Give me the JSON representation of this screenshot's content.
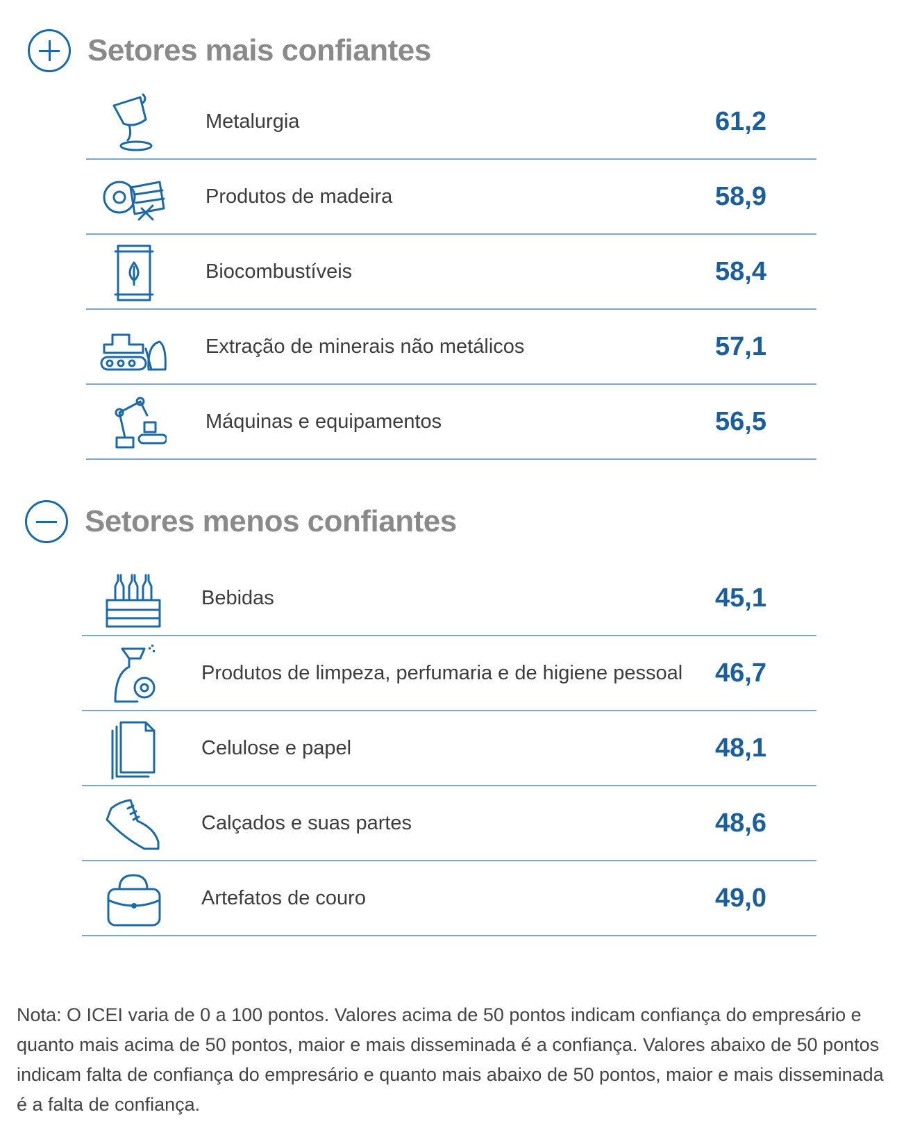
{
  "chart_data": {
    "type": "table",
    "sections": [
      {
        "title": "Setores mais confiantes",
        "sign": "plus",
        "rows": [
          {
            "label": "Metalurgia",
            "value": "61,2",
            "icon": "ladle-icon"
          },
          {
            "label": "Produtos de madeira",
            "value": "58,9",
            "icon": "saw-lumber-icon"
          },
          {
            "label": "Biocombustíveis",
            "value": "58,4",
            "icon": "biofuel-icon"
          },
          {
            "label": "Extração de minerais não metálicos",
            "value": "57,1",
            "icon": "bulldozer-icon"
          },
          {
            "label": "Máquinas e equipamentos",
            "value": "56,5",
            "icon": "robot-arm-icon"
          }
        ]
      },
      {
        "title": "Setores menos confiantes",
        "sign": "minus",
        "rows": [
          {
            "label": "Bebidas",
            "value": "45,1",
            "icon": "bottle-crate-icon"
          },
          {
            "label": "Produtos de limpeza, perfumaria e de higiene pessoal",
            "value": "46,7",
            "icon": "spray-bottle-icon"
          },
          {
            "label": "Celulose e papel",
            "value": "48,1",
            "icon": "paper-stack-icon"
          },
          {
            "label": "Calçados e suas partes",
            "value": "48,6",
            "icon": "sneaker-icon"
          },
          {
            "label": "Artefatos de couro",
            "value": "49,0",
            "icon": "handbag-icon"
          }
        ]
      }
    ],
    "note": "Nota: O ICEI varia de 0 a 100 pontos. Valores acima de 50 pontos indicam confiança do empresário e quanto mais acima de 50 pontos, maior e mais disseminada é a confiança. Valores abaixo de 50 pontos indicam falta de confiança do empresário e quanto mais abaixo de 50 pontos, maior e mais disseminada é a falta de confiança."
  },
  "colors": {
    "accent": "#1b6aa5",
    "value": "#1b5e9c",
    "title": "#8a8a8a",
    "rule": "#7fa6c9"
  }
}
